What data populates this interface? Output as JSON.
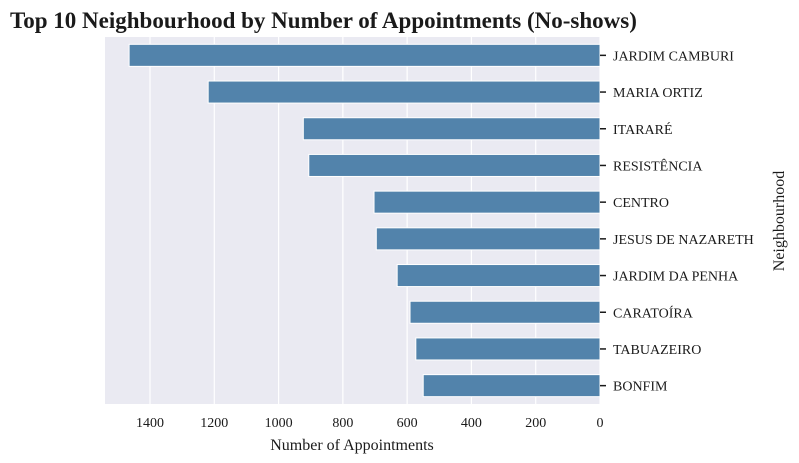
{
  "chart_data": {
    "type": "bar",
    "orientation": "horizontal",
    "x_axis_reversed": true,
    "title": "Top 10 Neighbourhood by Number of Appointments (No-shows)",
    "xlabel": "Number of Appointments",
    "ylabel": "Neighbourhood",
    "ylabel_position": "right",
    "xlim": [
      0,
      1540
    ],
    "x_ticks": [
      0,
      200,
      400,
      600,
      800,
      1000,
      1200,
      1400
    ],
    "grid": true,
    "categories": [
      "JARDIM CAMBURI",
      "MARIA ORTIZ",
      "ITARARÉ",
      "RESISTÊNCIA",
      "CENTRO",
      "JESUS DE NAZARETH",
      "JARDIM DA PENHA",
      "CARATOÍRA",
      "TABUAZEIRO",
      "BONFIM"
    ],
    "values": [
      1465,
      1219,
      923,
      906,
      703,
      696,
      631,
      591,
      573,
      550
    ],
    "colors": {
      "bar": "#5283ab",
      "plot_background": "#eaeaf2",
      "grid": "#ffffff"
    }
  }
}
